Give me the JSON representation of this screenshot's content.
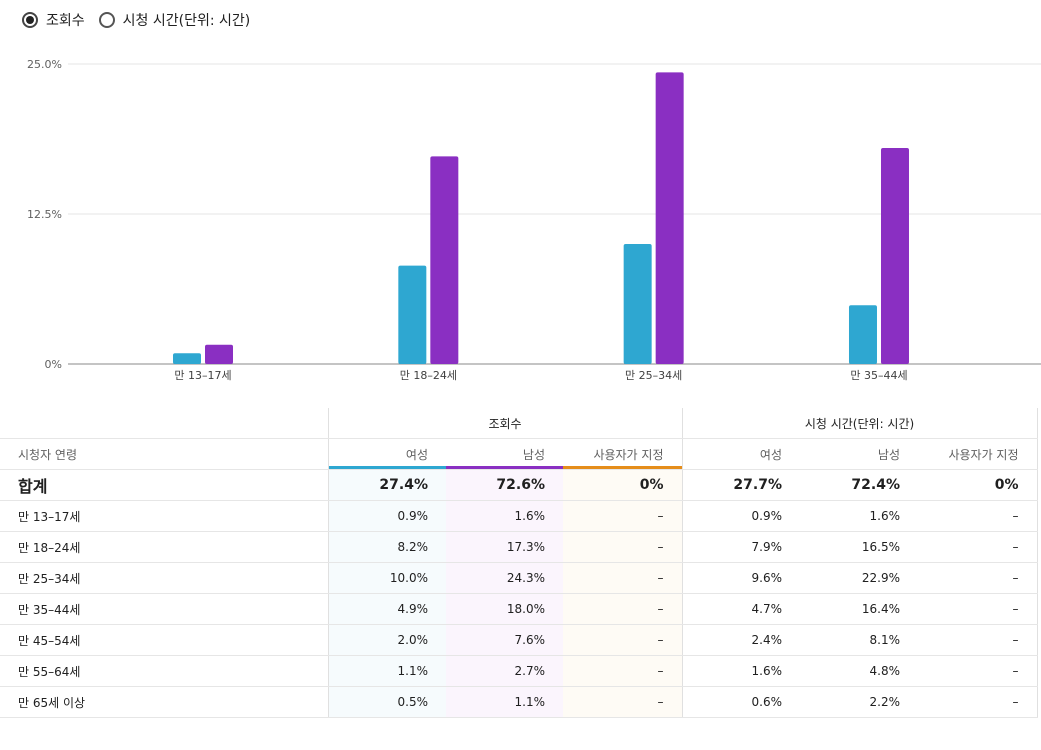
{
  "metric_toggle": {
    "options": [
      {
        "label": "조회수",
        "selected": true
      },
      {
        "label": "시청 시간(단위: 시간)",
        "selected": false
      }
    ]
  },
  "colors": {
    "female": "#2ea7d1",
    "male": "#8a2fc2",
    "custom": "#e58d1a"
  },
  "chart_data": {
    "type": "bar",
    "categories": [
      "만 13–17세",
      "만 18–24세",
      "만 25–34세",
      "만 35–44세"
    ],
    "series": [
      {
        "values": [
          0.9,
          8.2,
          10.0,
          4.9
        ]
      },
      {
        "values": [
          1.6,
          17.3,
          24.3,
          18.0
        ]
      }
    ],
    "ylim": [
      0,
      25
    ],
    "yticks": [
      "0%",
      "12.5%",
      "25.0%"
    ],
    "ytick_values": [
      0,
      12.5,
      25
    ],
    "grid": true
  },
  "table": {
    "age_header": "시청자 연령",
    "group_views": "조회수",
    "group_watch": "시청 시간(단위: 시간)",
    "col_female": "여성",
    "col_male": "남성",
    "col_custom": "사용자가 지정",
    "total": {
      "label": "합계",
      "values": [
        "27.4%",
        "72.6%",
        "0%",
        "27.7%",
        "72.4%",
        "0%"
      ]
    },
    "rows": [
      {
        "label": "만 13–17세",
        "values": [
          "0.9%",
          "1.6%",
          "–",
          "0.9%",
          "1.6%",
          "–"
        ]
      },
      {
        "label": "만 18–24세",
        "values": [
          "8.2%",
          "17.3%",
          "–",
          "7.9%",
          "16.5%",
          "–"
        ]
      },
      {
        "label": "만 25–34세",
        "values": [
          "10.0%",
          "24.3%",
          "–",
          "9.6%",
          "22.9%",
          "–"
        ]
      },
      {
        "label": "만 35–44세",
        "values": [
          "4.9%",
          "18.0%",
          "–",
          "4.7%",
          "16.4%",
          "–"
        ]
      },
      {
        "label": "만 45–54세",
        "values": [
          "2.0%",
          "7.6%",
          "–",
          "2.4%",
          "8.1%",
          "–"
        ]
      },
      {
        "label": "만 55–64세",
        "values": [
          "1.1%",
          "2.7%",
          "–",
          "1.6%",
          "4.8%",
          "–"
        ]
      },
      {
        "label": "만 65세 이상",
        "values": [
          "0.5%",
          "1.1%",
          "–",
          "0.6%",
          "2.2%",
          "–"
        ]
      }
    ]
  }
}
